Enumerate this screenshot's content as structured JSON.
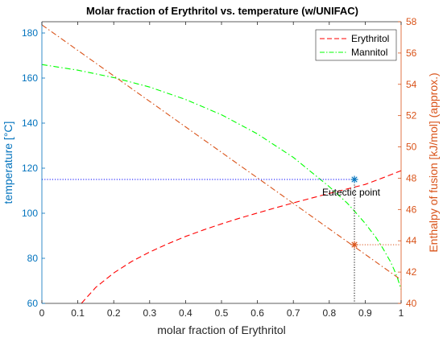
{
  "chart_data": {
    "type": "line",
    "title": "Molar fraction of Erythritol vs. temperature (w/UNIFAC)",
    "xlabel": "molar fraction of Erythritol",
    "ylabel_left": "temperature [°C]",
    "ylabel_right": "Enthalpy of fusion [kJ/mol] (approx.)",
    "xlim": [
      0,
      1
    ],
    "ylim_left": [
      60,
      185
    ],
    "ylim_right": [
      40,
      58
    ],
    "x_ticks": [
      "0",
      "0.1",
      "0.2",
      "0.3",
      "0.4",
      "0.5",
      "0.6",
      "0.7",
      "0.8",
      "0.9",
      "1"
    ],
    "y_left_ticks": [
      "60",
      "80",
      "100",
      "120",
      "140",
      "160",
      "180"
    ],
    "y_right_ticks": [
      "40",
      "42",
      "44",
      "46",
      "48",
      "50",
      "52",
      "54",
      "56",
      "58"
    ],
    "grid": false,
    "legend_position": "top-right",
    "colors": {
      "left_axis": "#0072BD",
      "right_axis": "#D95319",
      "erythritol": "#FF0000",
      "mannitol": "#00FF00",
      "enthalpy": "#D95319",
      "eutectic_guide": "#0000FF"
    },
    "series": [
      {
        "name": "Erythritol",
        "axis": "left",
        "style": "dashed",
        "x": [
          0.11,
          0.15,
          0.2,
          0.25,
          0.3,
          0.35,
          0.4,
          0.45,
          0.5,
          0.55,
          0.6,
          0.65,
          0.7,
          0.75,
          0.8,
          0.85,
          0.87,
          0.9,
          0.95,
          1.0
        ],
        "y": [
          60,
          67.1,
          73.5,
          78.6,
          82.8,
          86.4,
          89.7,
          92.6,
          95.3,
          97.8,
          100.1,
          102.4,
          104.6,
          106.7,
          108.8,
          110.8,
          111.6,
          112.8,
          115.8,
          118.9
        ]
      },
      {
        "name": "Mannitol",
        "axis": "left",
        "style": "dash-dot",
        "x": [
          0.0,
          0.1,
          0.2,
          0.3,
          0.4,
          0.5,
          0.6,
          0.7,
          0.8,
          0.85,
          0.87,
          0.9,
          0.93,
          0.95,
          0.97,
          0.98,
          0.99,
          1.0
        ],
        "y": [
          166,
          163.5,
          160.2,
          156,
          150.5,
          143.7,
          135.2,
          124.8,
          111.8,
          104.5,
          101,
          95.5,
          89.2,
          84.2,
          78.6,
          75.1,
          71.2,
          66.2
        ]
      },
      {
        "name": "",
        "axis": "right",
        "style": "dash-dot",
        "x": [
          0,
          1
        ],
        "y": [
          57.8,
          41.5
        ]
      }
    ],
    "annotations": [
      {
        "text": "Eutectic point",
        "x": 0.87,
        "y": 115,
        "marker_left": {
          "x": 0.87,
          "y": 115
        },
        "marker_right": {
          "x": 0.87,
          "y": 43.75
        }
      }
    ]
  }
}
